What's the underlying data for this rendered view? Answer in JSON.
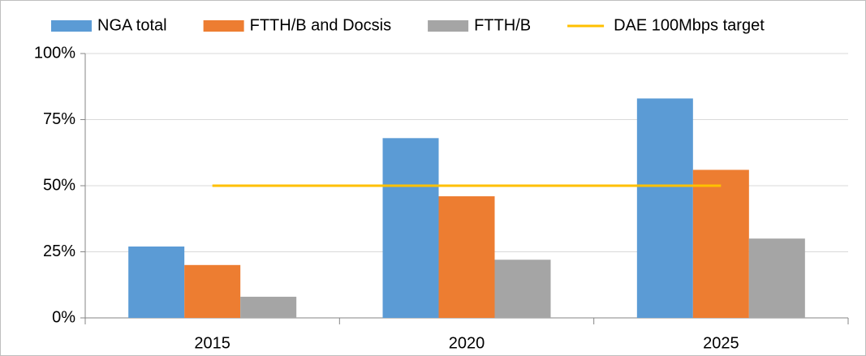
{
  "chart_data": {
    "type": "bar",
    "categories": [
      "2015",
      "2020",
      "2025"
    ],
    "series": [
      {
        "name": "NGA total",
        "color": "#5b9bd5",
        "values": [
          27,
          68,
          83
        ]
      },
      {
        "name": "FTTH/B and Docsis",
        "color": "#ed7d31",
        "values": [
          20,
          46,
          56
        ]
      },
      {
        "name": "FTTH/B",
        "color": "#a5a5a5",
        "values": [
          8,
          22,
          30
        ]
      },
      {
        "name": "DAE 100Mbps target",
        "color": "#ffc000",
        "type": "line",
        "values": [
          50,
          50,
          50
        ]
      }
    ],
    "ylim": [
      0,
      100
    ],
    "yticks": [
      {
        "value": 0,
        "label": "0%"
      },
      {
        "value": 25,
        "label": "25%"
      },
      {
        "value": 50,
        "label": "50%"
      },
      {
        "value": 75,
        "label": "75%"
      },
      {
        "value": 100,
        "label": "100%"
      }
    ],
    "grid": true,
    "legend": "top"
  }
}
